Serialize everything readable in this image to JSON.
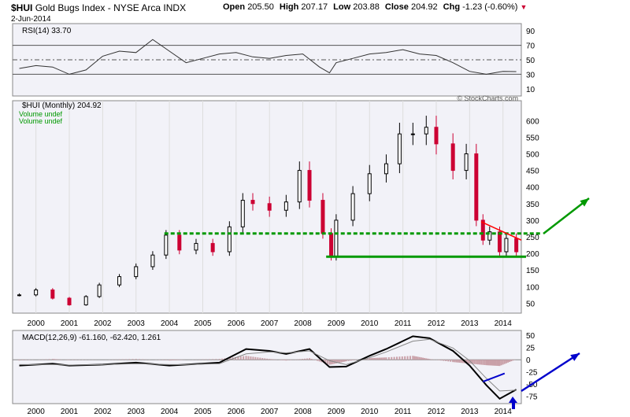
{
  "header": {
    "symbol": "$HUI",
    "name": "Gold Bugs Index - NYSE Arca INDX",
    "date": "2-Jun-2014",
    "open_label": "Open",
    "open": "205.50",
    "high_label": "High",
    "high": "207.17",
    "low_label": "Low",
    "low": "203.88",
    "close_label": "Close",
    "close": "204.92",
    "chg_label": "Chg",
    "chg": "-1.23 (-0.60%)",
    "watermark": "© StockCharts.com"
  },
  "colors": {
    "up": "#000000",
    "down": "#cc0033",
    "support": "#009900",
    "resistance": "#ff0000",
    "arrow_green": "#009900",
    "arrow_blue": "#0000cc",
    "panel_bg": "#f2f2f8",
    "histogram": "#c9a0a8"
  },
  "chart_data": [
    {
      "panel": "rsi",
      "type": "line",
      "label": "RSI(14) 33.70",
      "x_range": [
        1999.3,
        2014.55
      ],
      "ylim": [
        0,
        100
      ],
      "y_ticks": [
        10,
        30,
        50,
        70,
        90
      ],
      "reference_lines": [
        30,
        50,
        70
      ],
      "x": [
        1999.5,
        2000.0,
        2000.5,
        2001.0,
        2001.5,
        2002.0,
        2002.5,
        2003.0,
        2003.5,
        2004.0,
        2004.5,
        2005.0,
        2005.5,
        2006.0,
        2006.5,
        2007.0,
        2007.5,
        2008.0,
        2008.5,
        2008.8,
        2009.0,
        2009.5,
        2010.0,
        2010.5,
        2011.0,
        2011.5,
        2012.0,
        2012.5,
        2013.0,
        2013.5,
        2014.0,
        2014.4
      ],
      "y": [
        38,
        42,
        40,
        30,
        36,
        55,
        62,
        60,
        78,
        62,
        46,
        52,
        58,
        60,
        54,
        52,
        56,
        58,
        40,
        32,
        46,
        52,
        58,
        60,
        64,
        58,
        56,
        46,
        34,
        30,
        34,
        33.7
      ]
    },
    {
      "panel": "price",
      "type": "ohlc",
      "label": "$HUI (Monthly) 204.92",
      "volume_labels": [
        "Volume undef",
        "Volume undef"
      ],
      "x_range": [
        1999.3,
        2014.55
      ],
      "ylim": [
        20,
        660
      ],
      "y_ticks": [
        50,
        100,
        150,
        200,
        250,
        300,
        350,
        400,
        450,
        500,
        550,
        600
      ],
      "x_ticks": [
        "2000",
        "2001",
        "2002",
        "2003",
        "2004",
        "2005",
        "2006",
        "2007",
        "2008",
        "2009",
        "2010",
        "2011",
        "2012",
        "2013",
        "2014"
      ],
      "x": [
        1999.5,
        2000.0,
        2000.5,
        2001.0,
        2001.5,
        2001.9,
        2002.5,
        2003.0,
        2003.5,
        2003.9,
        2004.3,
        2004.8,
        2005.3,
        2005.8,
        2006.2,
        2006.5,
        2007.0,
        2007.5,
        2007.9,
        2008.2,
        2008.6,
        2008.85,
        2009.0,
        2009.5,
        2010.0,
        2010.5,
        2010.9,
        2011.3,
        2011.7,
        2012.0,
        2012.5,
        2012.9,
        2013.2,
        2013.4,
        2013.6,
        2013.9,
        2014.1,
        2014.4
      ],
      "close": [
        75,
        90,
        65,
        45,
        70,
        105,
        130,
        160,
        195,
        255,
        210,
        230,
        205,
        280,
        360,
        350,
        330,
        355,
        450,
        360,
        260,
        190,
        300,
        380,
        440,
        470,
        560,
        560,
        580,
        530,
        450,
        500,
        300,
        240,
        265,
        205,
        245,
        204.92
      ],
      "support": 190,
      "dashed_level": 260,
      "resistance_line": {
        "x": [
          2013.35,
          2014.55
        ],
        "y": [
          295,
          240
        ]
      }
    },
    {
      "panel": "macd",
      "type": "line",
      "label": "MACD(12,26,9) -61.160, -62.420, 1.261",
      "x_range": [
        1999.3,
        2014.55
      ],
      "ylim": [
        -90,
        60
      ],
      "y_ticks": [
        50,
        25,
        0,
        -25,
        -50,
        -75
      ],
      "series": [
        {
          "name": "MACD",
          "x": [
            1999.5,
            2000.5,
            2001.0,
            2002.0,
            2003.0,
            2004.0,
            2004.5,
            2005.5,
            2006.3,
            2007.0,
            2007.5,
            2008.2,
            2008.8,
            2009.3,
            2010.0,
            2010.5,
            2011.3,
            2011.8,
            2012.5,
            2013.0,
            2013.5,
            2013.9,
            2014.4
          ],
          "y": [
            -12,
            -8,
            -12,
            -10,
            -6,
            -12,
            -10,
            -6,
            22,
            18,
            12,
            22,
            -15,
            -14,
            8,
            22,
            48,
            44,
            18,
            -12,
            -52,
            -80,
            -61.16
          ]
        },
        {
          "name": "Signal",
          "x": [
            1999.5,
            2000.5,
            2001.0,
            2002.0,
            2003.0,
            2004.0,
            2004.5,
            2005.5,
            2006.3,
            2007.0,
            2007.5,
            2008.2,
            2008.8,
            2009.3,
            2010.0,
            2010.5,
            2011.3,
            2011.8,
            2012.5,
            2013.0,
            2013.5,
            2013.9,
            2014.4
          ],
          "y": [
            -10,
            -10,
            -11,
            -10,
            -8,
            -10,
            -10,
            -8,
            12,
            16,
            14,
            18,
            -2,
            -10,
            4,
            16,
            38,
            42,
            24,
            -2,
            -38,
            -64,
            -62.42
          ]
        }
      ],
      "histogram_label": "1.261"
    }
  ]
}
